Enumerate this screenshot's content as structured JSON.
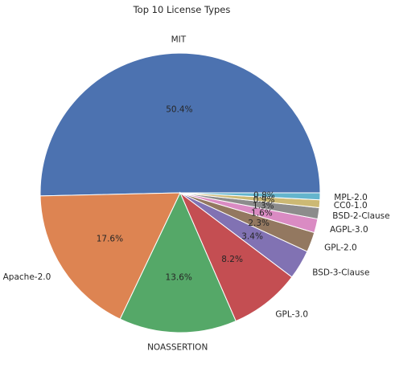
{
  "chart_data": {
    "type": "pie",
    "title": "Top 10 License Types",
    "start_angle_deg": 0,
    "direction": "counterclockwise",
    "slices": [
      {
        "label": "MIT",
        "value": 50.4,
        "pct_label": "50.4%",
        "color": "#4C72B0"
      },
      {
        "label": "Apache-2.0",
        "value": 17.6,
        "pct_label": "17.6%",
        "color": "#DD8452"
      },
      {
        "label": "NOASSERTION",
        "value": 13.6,
        "pct_label": "13.6%",
        "color": "#55A868"
      },
      {
        "label": "GPL-3.0",
        "value": 8.2,
        "pct_label": "8.2%",
        "color": "#C44E52"
      },
      {
        "label": "BSD-3-Clause",
        "value": 3.4,
        "pct_label": "3.4%",
        "color": "#8172B3"
      },
      {
        "label": "GPL-2.0",
        "value": 2.3,
        "pct_label": "2.3%",
        "color": "#937860"
      },
      {
        "label": "AGPL-3.0",
        "value": 1.6,
        "pct_label": "1.6%",
        "color": "#DA8BC3"
      },
      {
        "label": "BSD-2-Clause",
        "value": 1.3,
        "pct_label": "1.3%",
        "color": "#8C8C8C"
      },
      {
        "label": "CC0-1.0",
        "value": 0.9,
        "pct_label": "0.9%",
        "color": "#CCB974"
      },
      {
        "label": "MPL-2.0",
        "value": 0.8,
        "pct_label": "0.8%",
        "color": "#64B5CD"
      }
    ]
  }
}
